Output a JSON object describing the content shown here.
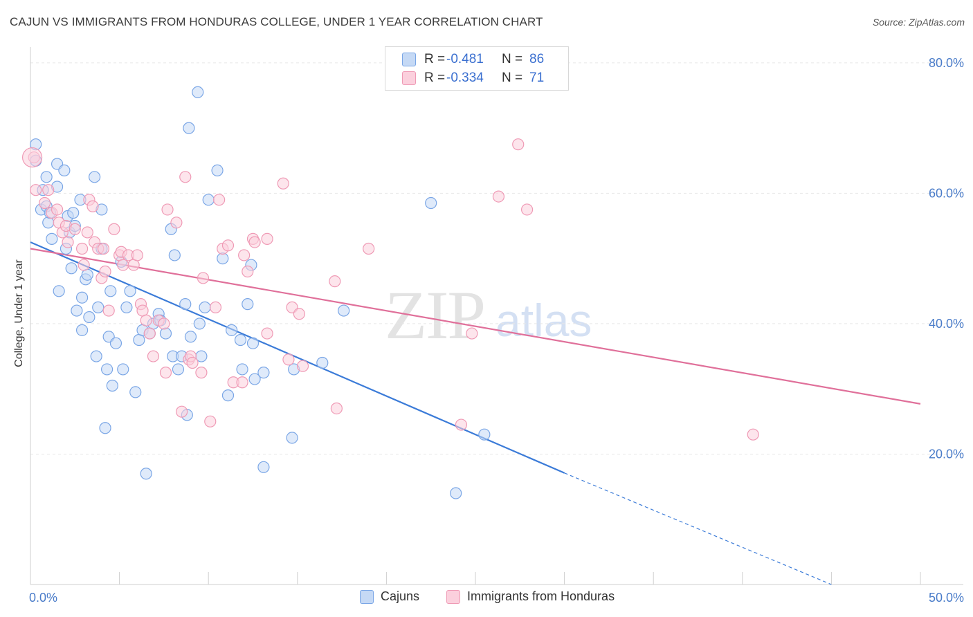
{
  "title": "CAJUN VS IMMIGRANTS FROM HONDURAS COLLEGE, UNDER 1 YEAR CORRELATION CHART",
  "source": "Source: ZipAtlas.com",
  "watermark": {
    "zip": "ZIP",
    "atlas": "atlas"
  },
  "legend": {
    "cajuns": {
      "r_label": "R =",
      "r_value": "-0.481",
      "n_label": "N =",
      "n_value": "86",
      "color": "#7aa6e6",
      "fill": "#c5d9f5"
    },
    "honduras": {
      "r_label": "R =",
      "r_value": "-0.334",
      "n_label": "N =",
      "n_value": "71",
      "color": "#ef9ab5",
      "fill": "#fbd0dd"
    }
  },
  "bottom_legend": {
    "cajuns_label": "Cajuns",
    "honduras_label": "Immigrants from Honduras"
  },
  "chart_data": {
    "type": "scatter",
    "title": "CAJUN VS IMMIGRANTS FROM HONDURAS COLLEGE, UNDER 1 YEAR CORRELATION CHART",
    "xlabel": "",
    "ylabel": "College, Under 1 year",
    "xlim": [
      0,
      50
    ],
    "ylim": [
      0,
      82
    ],
    "x_tick_labels": [
      {
        "value": 0,
        "label": "0.0%"
      },
      {
        "value": 50,
        "label": "50.0%"
      }
    ],
    "y_tick_labels": [
      {
        "value": 20,
        "label": "20.0%"
      },
      {
        "value": 40,
        "label": "40.0%"
      },
      {
        "value": 60,
        "label": "60.0%"
      },
      {
        "value": 80,
        "label": "80.0%"
      }
    ],
    "y_gridlines": [
      20,
      40,
      60,
      80
    ],
    "x_minor_ticks": [
      0,
      5,
      10,
      15,
      20,
      25,
      30,
      35,
      40,
      45,
      50
    ],
    "series": [
      {
        "name": "Cajuns",
        "color": "#3b7bd8",
        "fill": "#c5d9f5",
        "edge": "#7aa6e6",
        "points": [
          [
            0.3,
            67.5
          ],
          [
            0.3,
            65
          ],
          [
            0.6,
            57.5
          ],
          [
            0.7,
            60.5
          ],
          [
            0.9,
            58
          ],
          [
            0.9,
            62.5
          ],
          [
            1.0,
            55.5
          ],
          [
            1.1,
            57
          ],
          [
            1.2,
            53
          ],
          [
            1.5,
            64.5
          ],
          [
            1.5,
            61
          ],
          [
            1.6,
            45
          ],
          [
            1.9,
            63.5
          ],
          [
            2.0,
            51.5
          ],
          [
            2.1,
            56.5
          ],
          [
            2.2,
            54
          ],
          [
            2.3,
            48.5
          ],
          [
            2.4,
            57
          ],
          [
            2.5,
            55
          ],
          [
            2.6,
            42
          ],
          [
            2.8,
            59
          ],
          [
            2.9,
            39
          ],
          [
            2.9,
            44
          ],
          [
            3.1,
            46.8
          ],
          [
            3.2,
            47.5
          ],
          [
            3.3,
            41
          ],
          [
            3.6,
            62.5
          ],
          [
            3.7,
            35
          ],
          [
            3.8,
            42.5
          ],
          [
            4.0,
            57.5
          ],
          [
            4.0,
            51.5
          ],
          [
            4.2,
            24
          ],
          [
            4.3,
            33
          ],
          [
            4.4,
            38
          ],
          [
            4.5,
            45
          ],
          [
            4.6,
            30.5
          ],
          [
            4.8,
            37
          ],
          [
            5.1,
            49.5
          ],
          [
            5.2,
            33
          ],
          [
            5.4,
            42.5
          ],
          [
            5.6,
            45
          ],
          [
            5.9,
            29.5
          ],
          [
            6.1,
            37.5
          ],
          [
            6.3,
            39
          ],
          [
            6.5,
            17
          ],
          [
            6.7,
            38.5
          ],
          [
            6.9,
            40
          ],
          [
            7.2,
            41.5
          ],
          [
            7.3,
            40.5
          ],
          [
            7.6,
            38.5
          ],
          [
            7.9,
            54.5
          ],
          [
            8.0,
            35
          ],
          [
            8.1,
            50.5
          ],
          [
            8.3,
            33
          ],
          [
            8.5,
            35
          ],
          [
            8.7,
            43
          ],
          [
            8.8,
            26
          ],
          [
            8.9,
            70
          ],
          [
            9.0,
            38
          ],
          [
            9.4,
            75.5
          ],
          [
            9.5,
            40
          ],
          [
            9.6,
            35
          ],
          [
            9.8,
            42.5
          ],
          [
            10.0,
            59
          ],
          [
            10.5,
            63.5
          ],
          [
            10.8,
            50
          ],
          [
            11.1,
            29
          ],
          [
            11.3,
            39
          ],
          [
            11.8,
            37.5
          ],
          [
            11.9,
            33
          ],
          [
            12.2,
            43
          ],
          [
            12.4,
            49
          ],
          [
            12.5,
            37
          ],
          [
            12.6,
            31.5
          ],
          [
            13.1,
            18
          ],
          [
            13.1,
            32.5
          ],
          [
            14.7,
            22.5
          ],
          [
            14.8,
            33
          ],
          [
            16.4,
            34
          ],
          [
            17.6,
            42
          ],
          [
            22.5,
            58.5
          ],
          [
            23.9,
            14
          ],
          [
            25.5,
            23
          ]
        ],
        "trend": {
          "x0": 0,
          "y0": 52.5,
          "x1": 30,
          "y1": 17.1,
          "dash_to_x": 45,
          "dash_to_y": 0
        }
      },
      {
        "name": "Immigrants from Honduras",
        "color": "#e0709a",
        "fill": "#fbd0dd",
        "edge": "#ef9ab5",
        "points": [
          [
            0.2,
            65.5
          ],
          [
            0.3,
            60.5
          ],
          [
            0.8,
            58.5
          ],
          [
            1.0,
            60.5
          ],
          [
            1.2,
            57
          ],
          [
            1.5,
            57.5
          ],
          [
            1.6,
            55.5
          ],
          [
            1.8,
            54
          ],
          [
            2.0,
            55
          ],
          [
            2.1,
            52.5
          ],
          [
            2.5,
            54.5
          ],
          [
            2.9,
            51.5
          ],
          [
            3.0,
            49
          ],
          [
            3.2,
            54
          ],
          [
            3.3,
            59
          ],
          [
            3.5,
            58
          ],
          [
            3.6,
            52.5
          ],
          [
            3.8,
            51.5
          ],
          [
            4.0,
            47
          ],
          [
            4.1,
            51.5
          ],
          [
            4.2,
            48
          ],
          [
            4.4,
            42
          ],
          [
            4.7,
            54.5
          ],
          [
            5.0,
            50.5
          ],
          [
            5.1,
            51
          ],
          [
            5.2,
            49
          ],
          [
            5.5,
            50.5
          ],
          [
            5.8,
            49
          ],
          [
            6.0,
            50.5
          ],
          [
            6.2,
            43
          ],
          [
            6.3,
            42
          ],
          [
            6.5,
            40.5
          ],
          [
            6.7,
            38.5
          ],
          [
            6.9,
            35
          ],
          [
            7.2,
            40.5
          ],
          [
            7.5,
            40
          ],
          [
            7.6,
            32.5
          ],
          [
            7.7,
            57.5
          ],
          [
            8.2,
            55.5
          ],
          [
            8.5,
            26.5
          ],
          [
            8.7,
            62.5
          ],
          [
            8.9,
            34.5
          ],
          [
            9.0,
            35
          ],
          [
            9.1,
            34
          ],
          [
            9.6,
            32.5
          ],
          [
            9.7,
            47
          ],
          [
            10.1,
            25
          ],
          [
            10.4,
            42.5
          ],
          [
            10.6,
            59
          ],
          [
            10.8,
            51.5
          ],
          [
            11.1,
            52
          ],
          [
            11.4,
            31
          ],
          [
            11.9,
            31
          ],
          [
            12.0,
            50.5
          ],
          [
            12.2,
            48
          ],
          [
            12.5,
            53
          ],
          [
            12.6,
            52.5
          ],
          [
            13.3,
            38.5
          ],
          [
            13.3,
            53
          ],
          [
            14.2,
            61.5
          ],
          [
            14.5,
            34.5
          ],
          [
            14.7,
            42.5
          ],
          [
            15.1,
            41.5
          ],
          [
            15.3,
            33.5
          ],
          [
            17.1,
            46.5
          ],
          [
            17.2,
            27
          ],
          [
            19.0,
            51.5
          ],
          [
            24.2,
            24.5
          ],
          [
            24.8,
            38.5
          ],
          [
            26.3,
            59.5
          ],
          [
            27.4,
            67.5
          ],
          [
            27.9,
            57.5
          ],
          [
            40.6,
            23
          ]
        ],
        "trend": {
          "x0": 0,
          "y0": 51.5,
          "x1": 50,
          "y1": 27.7
        }
      }
    ]
  }
}
